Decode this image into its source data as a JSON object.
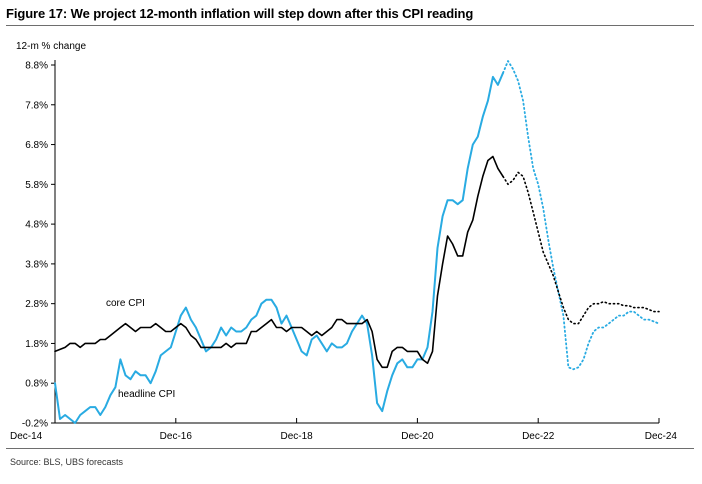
{
  "figure": {
    "title": "Figure 17: We project 12-month inflation will step down after this CPI reading",
    "source": "Source: BLS, UBS forecasts"
  },
  "chart_data": {
    "type": "line",
    "ylabel": "12-m % change",
    "ylim": [
      -0.2,
      8.8
    ],
    "yticks": [
      -0.2,
      0.8,
      1.8,
      2.8,
      3.8,
      4.8,
      5.8,
      6.8,
      7.8,
      8.8
    ],
    "ytick_labels": [
      "-0.2%",
      "0.8%",
      "1.8%",
      "2.8%",
      "3.8%",
      "4.8%",
      "5.8%",
      "6.8%",
      "7.8%",
      "8.8%"
    ],
    "xlim": [
      "2014-12",
      "2024-12"
    ],
    "xticks": [
      "2014-12",
      "2016-12",
      "2018-12",
      "2020-12",
      "2022-12",
      "2024-12"
    ],
    "xtick_labels": [
      "Dec-14",
      "Dec-16",
      "Dec-18",
      "Dec-20",
      "Dec-22",
      "Dec-24"
    ],
    "grid": false,
    "series": [
      {
        "name": "headline CPI",
        "color": "#29abe2",
        "style": "solid",
        "points": [
          [
            "2014-12",
            0.8
          ],
          [
            "2015-01",
            -0.1
          ],
          [
            "2015-02",
            0.0
          ],
          [
            "2015-03",
            -0.1
          ],
          [
            "2015-04",
            -0.2
          ],
          [
            "2015-05",
            0.0
          ],
          [
            "2015-06",
            0.1
          ],
          [
            "2015-07",
            0.2
          ],
          [
            "2015-08",
            0.2
          ],
          [
            "2015-09",
            0.0
          ],
          [
            "2015-10",
            0.2
          ],
          [
            "2015-11",
            0.5
          ],
          [
            "2015-12",
            0.7
          ],
          [
            "2016-01",
            1.4
          ],
          [
            "2016-02",
            1.0
          ],
          [
            "2016-03",
            0.9
          ],
          [
            "2016-04",
            1.1
          ],
          [
            "2016-05",
            1.0
          ],
          [
            "2016-06",
            1.0
          ],
          [
            "2016-07",
            0.8
          ],
          [
            "2016-08",
            1.1
          ],
          [
            "2016-09",
            1.5
          ],
          [
            "2016-10",
            1.6
          ],
          [
            "2016-11",
            1.7
          ],
          [
            "2016-12",
            2.1
          ],
          [
            "2017-01",
            2.5
          ],
          [
            "2017-02",
            2.7
          ],
          [
            "2017-03",
            2.4
          ],
          [
            "2017-04",
            2.2
          ],
          [
            "2017-05",
            1.9
          ],
          [
            "2017-06",
            1.6
          ],
          [
            "2017-07",
            1.7
          ],
          [
            "2017-08",
            1.9
          ],
          [
            "2017-09",
            2.2
          ],
          [
            "2017-10",
            2.0
          ],
          [
            "2017-11",
            2.2
          ],
          [
            "2017-12",
            2.1
          ],
          [
            "2018-01",
            2.1
          ],
          [
            "2018-02",
            2.2
          ],
          [
            "2018-03",
            2.4
          ],
          [
            "2018-04",
            2.5
          ],
          [
            "2018-05",
            2.8
          ],
          [
            "2018-06",
            2.9
          ],
          [
            "2018-07",
            2.9
          ],
          [
            "2018-08",
            2.7
          ],
          [
            "2018-09",
            2.3
          ],
          [
            "2018-10",
            2.5
          ],
          [
            "2018-11",
            2.2
          ],
          [
            "2018-12",
            1.9
          ],
          [
            "2019-01",
            1.6
          ],
          [
            "2019-02",
            1.5
          ],
          [
            "2019-03",
            1.9
          ],
          [
            "2019-04",
            2.0
          ],
          [
            "2019-05",
            1.8
          ],
          [
            "2019-06",
            1.6
          ],
          [
            "2019-07",
            1.8
          ],
          [
            "2019-08",
            1.7
          ],
          [
            "2019-09",
            1.7
          ],
          [
            "2019-10",
            1.8
          ],
          [
            "2019-11",
            2.1
          ],
          [
            "2019-12",
            2.3
          ],
          [
            "2020-01",
            2.5
          ],
          [
            "2020-02",
            2.3
          ],
          [
            "2020-03",
            1.5
          ],
          [
            "2020-04",
            0.3
          ],
          [
            "2020-05",
            0.1
          ],
          [
            "2020-06",
            0.6
          ],
          [
            "2020-07",
            1.0
          ],
          [
            "2020-08",
            1.3
          ],
          [
            "2020-09",
            1.4
          ],
          [
            "2020-10",
            1.2
          ],
          [
            "2020-11",
            1.2
          ],
          [
            "2020-12",
            1.4
          ],
          [
            "2021-01",
            1.4
          ],
          [
            "2021-02",
            1.7
          ],
          [
            "2021-03",
            2.6
          ],
          [
            "2021-04",
            4.2
          ],
          [
            "2021-05",
            5.0
          ],
          [
            "2021-06",
            5.4
          ],
          [
            "2021-07",
            5.4
          ],
          [
            "2021-08",
            5.3
          ],
          [
            "2021-09",
            5.4
          ],
          [
            "2021-10",
            6.2
          ],
          [
            "2021-11",
            6.8
          ],
          [
            "2021-12",
            7.0
          ],
          [
            "2022-01",
            7.5
          ],
          [
            "2022-02",
            7.9
          ],
          [
            "2022-03",
            8.5
          ],
          [
            "2022-04",
            8.3
          ],
          [
            "2022-05",
            8.6
          ]
        ]
      },
      {
        "name": "headline CPI forecast",
        "color": "#29abe2",
        "style": "dotted",
        "points": [
          [
            "2022-05",
            8.6
          ],
          [
            "2022-06",
            8.9
          ],
          [
            "2022-07",
            8.7
          ],
          [
            "2022-08",
            8.4
          ],
          [
            "2022-09",
            7.9
          ],
          [
            "2022-10",
            7.0
          ],
          [
            "2022-11",
            6.2
          ],
          [
            "2022-12",
            5.8
          ],
          [
            "2023-01",
            5.2
          ],
          [
            "2023-02",
            4.4
          ],
          [
            "2023-03",
            3.7
          ],
          [
            "2023-04",
            3.1
          ],
          [
            "2023-05",
            2.5
          ],
          [
            "2023-06",
            1.2
          ],
          [
            "2023-07",
            1.15
          ],
          [
            "2023-08",
            1.2
          ],
          [
            "2023-09",
            1.4
          ],
          [
            "2023-10",
            1.8
          ],
          [
            "2023-11",
            2.1
          ],
          [
            "2023-12",
            2.2
          ],
          [
            "2024-01",
            2.2
          ],
          [
            "2024-02",
            2.3
          ],
          [
            "2024-03",
            2.4
          ],
          [
            "2024-04",
            2.5
          ],
          [
            "2024-05",
            2.5
          ],
          [
            "2024-06",
            2.6
          ],
          [
            "2024-07",
            2.6
          ],
          [
            "2024-08",
            2.5
          ],
          [
            "2024-09",
            2.4
          ],
          [
            "2024-10",
            2.4
          ],
          [
            "2024-11",
            2.35
          ],
          [
            "2024-12",
            2.3
          ]
        ]
      },
      {
        "name": "core CPI",
        "color": "#000000",
        "style": "solid",
        "points": [
          [
            "2014-12",
            1.6
          ],
          [
            "2015-01",
            1.65
          ],
          [
            "2015-02",
            1.7
          ],
          [
            "2015-03",
            1.8
          ],
          [
            "2015-04",
            1.8
          ],
          [
            "2015-05",
            1.7
          ],
          [
            "2015-06",
            1.8
          ],
          [
            "2015-07",
            1.8
          ],
          [
            "2015-08",
            1.8
          ],
          [
            "2015-09",
            1.9
          ],
          [
            "2015-10",
            1.9
          ],
          [
            "2015-11",
            2.0
          ],
          [
            "2015-12",
            2.1
          ],
          [
            "2016-01",
            2.2
          ],
          [
            "2016-02",
            2.3
          ],
          [
            "2016-03",
            2.2
          ],
          [
            "2016-04",
            2.1
          ],
          [
            "2016-05",
            2.2
          ],
          [
            "2016-06",
            2.2
          ],
          [
            "2016-07",
            2.2
          ],
          [
            "2016-08",
            2.3
          ],
          [
            "2016-09",
            2.2
          ],
          [
            "2016-10",
            2.1
          ],
          [
            "2016-11",
            2.1
          ],
          [
            "2016-12",
            2.2
          ],
          [
            "2017-01",
            2.3
          ],
          [
            "2017-02",
            2.2
          ],
          [
            "2017-03",
            2.0
          ],
          [
            "2017-04",
            1.9
          ],
          [
            "2017-05",
            1.7
          ],
          [
            "2017-06",
            1.7
          ],
          [
            "2017-07",
            1.7
          ],
          [
            "2017-08",
            1.7
          ],
          [
            "2017-09",
            1.7
          ],
          [
            "2017-10",
            1.8
          ],
          [
            "2017-11",
            1.7
          ],
          [
            "2017-12",
            1.8
          ],
          [
            "2018-01",
            1.8
          ],
          [
            "2018-02",
            1.8
          ],
          [
            "2018-03",
            2.1
          ],
          [
            "2018-04",
            2.1
          ],
          [
            "2018-05",
            2.2
          ],
          [
            "2018-06",
            2.3
          ],
          [
            "2018-07",
            2.4
          ],
          [
            "2018-08",
            2.2
          ],
          [
            "2018-09",
            2.2
          ],
          [
            "2018-10",
            2.1
          ],
          [
            "2018-11",
            2.2
          ],
          [
            "2018-12",
            2.2
          ],
          [
            "2019-01",
            2.2
          ],
          [
            "2019-02",
            2.1
          ],
          [
            "2019-03",
            2.0
          ],
          [
            "2019-04",
            2.1
          ],
          [
            "2019-05",
            2.0
          ],
          [
            "2019-06",
            2.1
          ],
          [
            "2019-07",
            2.2
          ],
          [
            "2019-08",
            2.4
          ],
          [
            "2019-09",
            2.4
          ],
          [
            "2019-10",
            2.3
          ],
          [
            "2019-11",
            2.3
          ],
          [
            "2019-12",
            2.3
          ],
          [
            "2020-01",
            2.3
          ],
          [
            "2020-02",
            2.4
          ],
          [
            "2020-03",
            2.1
          ],
          [
            "2020-04",
            1.4
          ],
          [
            "2020-05",
            1.2
          ],
          [
            "2020-06",
            1.2
          ],
          [
            "2020-07",
            1.6
          ],
          [
            "2020-08",
            1.7
          ],
          [
            "2020-09",
            1.7
          ],
          [
            "2020-10",
            1.6
          ],
          [
            "2020-11",
            1.6
          ],
          [
            "2020-12",
            1.6
          ],
          [
            "2021-01",
            1.4
          ],
          [
            "2021-02",
            1.3
          ],
          [
            "2021-03",
            1.6
          ],
          [
            "2021-04",
            3.0
          ],
          [
            "2021-05",
            3.8
          ],
          [
            "2021-06",
            4.5
          ],
          [
            "2021-07",
            4.3
          ],
          [
            "2021-08",
            4.0
          ],
          [
            "2021-09",
            4.0
          ],
          [
            "2021-10",
            4.6
          ],
          [
            "2021-11",
            4.9
          ],
          [
            "2021-12",
            5.5
          ],
          [
            "2022-01",
            6.0
          ],
          [
            "2022-02",
            6.4
          ],
          [
            "2022-03",
            6.5
          ],
          [
            "2022-04",
            6.2
          ],
          [
            "2022-05",
            6.0
          ]
        ]
      },
      {
        "name": "core CPI forecast",
        "color": "#000000",
        "style": "dotted",
        "points": [
          [
            "2022-05",
            6.0
          ],
          [
            "2022-06",
            5.8
          ],
          [
            "2022-07",
            5.9
          ],
          [
            "2022-08",
            6.1
          ],
          [
            "2022-09",
            6.0
          ],
          [
            "2022-10",
            5.6
          ],
          [
            "2022-11",
            5.1
          ],
          [
            "2022-12",
            4.6
          ],
          [
            "2023-01",
            4.1
          ],
          [
            "2023-02",
            3.8
          ],
          [
            "2023-03",
            3.5
          ],
          [
            "2023-04",
            3.1
          ],
          [
            "2023-05",
            2.7
          ],
          [
            "2023-06",
            2.4
          ],
          [
            "2023-07",
            2.3
          ],
          [
            "2023-08",
            2.3
          ],
          [
            "2023-09",
            2.5
          ],
          [
            "2023-10",
            2.7
          ],
          [
            "2023-11",
            2.8
          ],
          [
            "2023-12",
            2.8
          ],
          [
            "2024-01",
            2.85
          ],
          [
            "2024-02",
            2.8
          ],
          [
            "2024-03",
            2.8
          ],
          [
            "2024-04",
            2.8
          ],
          [
            "2024-05",
            2.75
          ],
          [
            "2024-06",
            2.75
          ],
          [
            "2024-07",
            2.7
          ],
          [
            "2024-08",
            2.7
          ],
          [
            "2024-09",
            2.7
          ],
          [
            "2024-10",
            2.65
          ],
          [
            "2024-11",
            2.6
          ],
          [
            "2024-12",
            2.6
          ]
        ]
      }
    ],
    "annotations": [
      {
        "text": "core CPI",
        "series": "core CPI"
      },
      {
        "text": "headline CPI",
        "series": "headline CPI"
      }
    ]
  }
}
